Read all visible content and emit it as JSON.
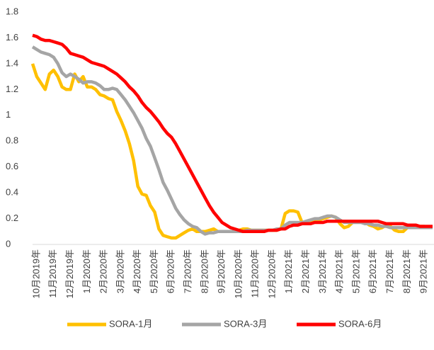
{
  "chart_data": {
    "type": "line",
    "categories": [
      null,
      "10月2019年",
      null,
      null,
      null,
      "11月2019年",
      null,
      null,
      null,
      "12月2019年",
      null,
      null,
      null,
      "1月2020年",
      null,
      null,
      null,
      "2月2020年",
      null,
      null,
      null,
      "3月2020年",
      null,
      null,
      null,
      "4月2020年",
      null,
      null,
      null,
      "5月2020年",
      null,
      null,
      null,
      "6月2020年",
      null,
      null,
      null,
      "7月2020年",
      null,
      null,
      null,
      "8月2020年",
      null,
      null,
      null,
      "9月2020年",
      null,
      null,
      null,
      "10月2020年",
      null,
      null,
      null,
      "11月2020年",
      null,
      null,
      null,
      "12月2020年",
      null,
      null,
      null,
      "1月2021年",
      null,
      null,
      null,
      "2月2021年",
      null,
      null,
      null,
      "3月2021年",
      null,
      null,
      null,
      "4月2021年",
      null,
      null,
      null,
      "5月2021年",
      null,
      null,
      null,
      "6月2021年",
      null,
      null,
      null,
      "7月2021年",
      null,
      null,
      null,
      "8月2021年",
      null,
      null,
      null,
      "9月2021年",
      null,
      null
    ],
    "series": [
      {
        "name": "SORA-1月",
        "color": "#ffc000",
        "values": [
          1.4,
          1.3,
          1.25,
          1.2,
          1.32,
          1.35,
          1.3,
          1.22,
          1.2,
          1.2,
          1.32,
          1.26,
          1.3,
          1.22,
          1.22,
          1.2,
          1.16,
          1.15,
          1.13,
          1.12,
          1.03,
          0.96,
          0.88,
          0.78,
          0.65,
          0.45,
          0.39,
          0.38,
          0.3,
          0.25,
          0.12,
          0.07,
          0.06,
          0.05,
          0.05,
          0.07,
          0.09,
          0.11,
          0.12,
          0.1,
          0.1,
          0.1,
          0.11,
          0.12,
          0.1,
          0.1,
          0.1,
          0.1,
          0.1,
          0.11,
          0.12,
          0.12,
          0.11,
          0.11,
          0.11,
          0.11,
          0.11,
          0.11,
          0.11,
          0.12,
          0.24,
          0.26,
          0.26,
          0.25,
          0.17,
          0.17,
          0.18,
          0.18,
          0.19,
          0.2,
          0.21,
          0.22,
          0.21,
          0.16,
          0.13,
          0.14,
          0.17,
          0.18,
          0.18,
          0.17,
          0.15,
          0.14,
          0.12,
          0.13,
          0.15,
          0.14,
          0.11,
          0.1,
          0.1,
          0.13,
          0.14,
          0.14,
          0.14,
          0.14,
          0.13,
          0.13
        ]
      },
      {
        "name": "SORA-3月",
        "color": "#a5a5a5",
        "values": [
          1.53,
          1.51,
          1.49,
          1.48,
          1.47,
          1.45,
          1.4,
          1.33,
          1.3,
          1.32,
          1.3,
          1.28,
          1.25,
          1.26,
          1.26,
          1.25,
          1.23,
          1.2,
          1.2,
          1.21,
          1.2,
          1.16,
          1.12,
          1.07,
          1.02,
          0.96,
          0.9,
          0.82,
          0.76,
          0.67,
          0.58,
          0.48,
          0.42,
          0.35,
          0.28,
          0.23,
          0.19,
          0.16,
          0.14,
          0.13,
          0.1,
          0.08,
          0.09,
          0.09,
          0.1,
          0.1,
          0.1,
          0.1,
          0.1,
          0.1,
          0.1,
          0.11,
          0.11,
          0.11,
          0.11,
          0.11,
          0.11,
          0.11,
          0.12,
          0.12,
          0.15,
          0.17,
          0.17,
          0.17,
          0.17,
          0.18,
          0.19,
          0.2,
          0.2,
          0.21,
          0.22,
          0.22,
          0.21,
          0.19,
          0.17,
          0.17,
          0.17,
          0.17,
          0.17,
          0.16,
          0.16,
          0.15,
          0.15,
          0.14,
          0.14,
          0.13,
          0.13,
          0.13,
          0.13,
          0.13,
          0.13,
          0.13,
          0.13,
          0.13,
          0.13,
          0.13
        ]
      },
      {
        "name": "SORA-6月",
        "color": "#ff0000",
        "values": [
          1.62,
          1.61,
          1.59,
          1.58,
          1.58,
          1.57,
          1.56,
          1.55,
          1.52,
          1.48,
          1.47,
          1.46,
          1.45,
          1.43,
          1.41,
          1.4,
          1.39,
          1.38,
          1.36,
          1.34,
          1.32,
          1.29,
          1.26,
          1.22,
          1.19,
          1.15,
          1.1,
          1.06,
          1.03,
          0.99,
          0.95,
          0.9,
          0.86,
          0.83,
          0.78,
          0.72,
          0.66,
          0.6,
          0.54,
          0.48,
          0.42,
          0.36,
          0.3,
          0.25,
          0.21,
          0.17,
          0.15,
          0.13,
          0.12,
          0.11,
          0.1,
          0.1,
          0.1,
          0.1,
          0.1,
          0.1,
          0.11,
          0.11,
          0.11,
          0.12,
          0.12,
          0.14,
          0.15,
          0.15,
          0.16,
          0.16,
          0.16,
          0.17,
          0.17,
          0.17,
          0.18,
          0.18,
          0.18,
          0.18,
          0.18,
          0.18,
          0.18,
          0.18,
          0.18,
          0.18,
          0.18,
          0.18,
          0.18,
          0.17,
          0.16,
          0.16,
          0.16,
          0.16,
          0.16,
          0.15,
          0.15,
          0.15,
          0.14,
          0.14,
          0.14,
          0.14
        ]
      }
    ],
    "ylim": [
      0,
      1.8
    ],
    "yticks": [
      0,
      0.2,
      0.4,
      0.6,
      0.8,
      1,
      1.2,
      1.4,
      1.6,
      1.8
    ],
    "grid": false,
    "legend": "bottom"
  }
}
